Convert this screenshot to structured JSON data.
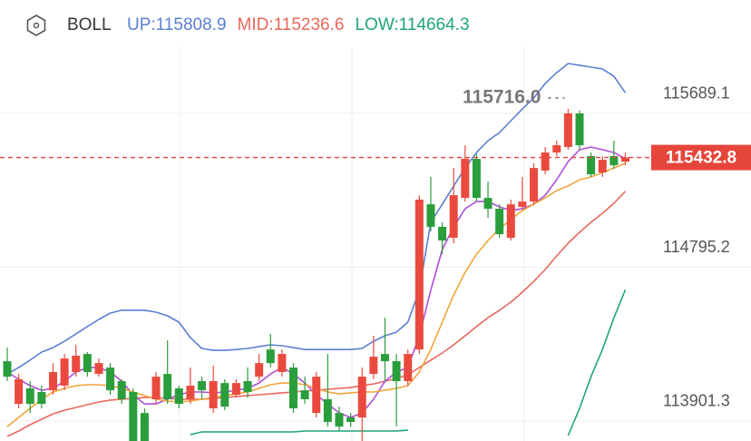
{
  "chart_data": {
    "type": "candlestick",
    "title": "BOLL",
    "legend": [
      {
        "text": "UP:115808.9",
        "color": "#5b7fd1"
      },
      {
        "text": "MID:115236.6",
        "color": "#e8675a"
      },
      {
        "text": "LOW:114664.3",
        "color": "#1fa37a"
      }
    ],
    "annotation": "115716.0",
    "ylim": [
      113785.2,
      116348.3
    ],
    "yticks": [
      115689.1,
      114795.2,
      113901.3
    ],
    "grid": true,
    "up_color": "#ea4a3e",
    "down_color": "#2b9e3c",
    "price_line_color": "#e5453b",
    "open": [
      114249,
      114001,
      114091,
      114070,
      114080,
      114107,
      114186,
      114291,
      114175,
      114212,
      114133,
      114070,
      113948,
      114028,
      114175,
      114091,
      114028,
      114133,
      113975,
      114122,
      114054,
      114133,
      114159,
      114317,
      114186,
      114212,
      114080,
      113948,
      114028,
      113948,
      113922,
      113922,
      114175,
      114291,
      114249,
      114133,
      114317,
      115161,
      115030,
      114966,
      115198,
      115425,
      115198,
      115135,
      114966,
      115146,
      115177,
      115357,
      115462,
      115494,
      115689,
      115441,
      115346,
      115441,
      115409
    ],
    "high": [
      114328,
      114175,
      114133,
      114107,
      114238,
      114291,
      114344,
      114302,
      114265,
      114238,
      114144,
      114091,
      113975,
      114186,
      114370,
      114107,
      114212,
      114159,
      114223,
      114144,
      114144,
      114212,
      114291,
      114407,
      114317,
      114238,
      114159,
      114186,
      114291,
      113985,
      113948,
      114212,
      114397,
      114502,
      114291,
      114317,
      115214,
      115320,
      115056,
      115372,
      115504,
      115452,
      115293,
      115161,
      115188,
      115320,
      115399,
      115494,
      115531,
      115716,
      115705,
      115462,
      115441,
      115531,
      115462
    ],
    "low": [
      114133,
      113975,
      113948,
      113975,
      114054,
      114080,
      114159,
      114159,
      114159,
      114054,
      114001,
      113785,
      113785,
      114001,
      114001,
      113975,
      114001,
      114028,
      113948,
      113964,
      114038,
      114038,
      114133,
      114212,
      114159,
      113948,
      114001,
      113922,
      113869,
      113843,
      113869,
      113785,
      114144,
      114133,
      113869,
      114107,
      114291,
      115003,
      114871,
      114935,
      115177,
      115177,
      115082,
      114966,
      114950,
      115135,
      115156,
      115335,
      115441,
      115478,
      115478,
      115320,
      115320,
      115367,
      115388
    ],
    "close": [
      114159,
      114144,
      114001,
      114001,
      114186,
      114265,
      114281,
      114186,
      114238,
      114080,
      114028,
      113785,
      113785,
      114159,
      114028,
      114001,
      114107,
      114080,
      114133,
      113985,
      114122,
      114070,
      114238,
      114238,
      114291,
      113975,
      114028,
      114159,
      113896,
      113869,
      113896,
      114159,
      114275,
      114249,
      114133,
      114291,
      115188,
      115030,
      114950,
      115214,
      115425,
      115198,
      115135,
      114987,
      115161,
      115177,
      115372,
      115462,
      115504,
      115689,
      115504,
      115335,
      115420,
      115388,
      115432.8
    ],
    "series": [
      {
        "color": "#5b7fd1",
        "values": [
          114175,
          114212,
          114255,
          114302,
          114328,
          114365,
          114408,
          114450,
          114492,
          114529,
          114545,
          114545,
          114545,
          114534,
          114513,
          114476,
          114386,
          114323,
          114312,
          114312,
          114317,
          114323,
          114334,
          114344,
          114339,
          114328,
          114317,
          114317,
          114317,
          114317,
          114317,
          114323,
          114365,
          114397,
          114418,
          114476,
          114661,
          115056,
          115161,
          115267,
          115372,
          115462,
          115531,
          115578,
          115647,
          115715,
          115779,
          115863,
          115926,
          115979,
          115969,
          115958,
          115948,
          115905,
          115808.9
        ]
      },
      {
        "color": "#e8675a",
        "values": [
          113812,
          113843,
          113880,
          113912,
          113943,
          113964,
          113980,
          113996,
          114012,
          114023,
          114028,
          114033,
          114038,
          114038,
          114033,
          114028,
          114028,
          114028,
          114033,
          114038,
          114044,
          114049,
          114054,
          114059,
          114065,
          114070,
          114075,
          114080,
          114086,
          114091,
          114096,
          114107,
          114117,
          114133,
          114149,
          114170,
          114212,
          114255,
          114297,
          114344,
          114397,
          114450,
          114502,
          114545,
          114592,
          114650,
          114713,
          114782,
          114861,
          114935,
          114998,
          115056,
          115109,
          115167,
          115236.6
        ]
      },
      {
        "color": "#1fa37a",
        "values": [
          null,
          null,
          null,
          null,
          null,
          null,
          null,
          null,
          null,
          null,
          null,
          null,
          null,
          null,
          null,
          null,
          113822,
          113838,
          113838,
          113838,
          113838,
          113838,
          113838,
          113838,
          113838,
          113838,
          113843,
          113843,
          113843,
          113843,
          113843,
          113843,
          113843,
          113843,
          113843,
          113848,
          null,
          null,
          null,
          null,
          null,
          null,
          null,
          null,
          null,
          null,
          null,
          null,
          null,
          113817,
          113975,
          114159,
          114317,
          114502,
          114664.3
        ]
      },
      {
        "color": "#b04fd6",
        "values": [
          114186,
          114144,
          114107,
          114080,
          114091,
          114133,
          114186,
          114212,
          114212,
          114186,
          114133,
          114054,
          114001,
          114001,
          114028,
          114054,
          114070,
          114070,
          114065,
          114070,
          114080,
          114091,
          114122,
          114175,
          114212,
          114175,
          114122,
          114054,
          114001,
          113948,
          113922,
          113948,
          114028,
          114133,
          114186,
          114212,
          114397,
          114661,
          114898,
          115030,
          115135,
          115177,
          115177,
          115146,
          115125,
          115135,
          115161,
          115214,
          115304,
          115409,
          115478,
          115494,
          115478,
          115462,
          115425
        ]
      },
      {
        "color": "#f0a53a",
        "values": [
          113869,
          113922,
          113975,
          114028,
          114070,
          114091,
          114107,
          114112,
          114112,
          114107,
          114091,
          114070,
          114049,
          114028,
          114017,
          114012,
          114017,
          114028,
          114038,
          114049,
          114059,
          114070,
          114091,
          114112,
          114122,
          114122,
          114112,
          114091,
          114070,
          114059,
          114065,
          114070,
          114070,
          114080,
          114091,
          114107,
          114186,
          114317,
          114476,
          114634,
          114766,
          114871,
          114950,
          115019,
          115072,
          115125,
          115161,
          115198,
          115241,
          115267,
          115304,
          115320,
          115346,
          115372,
          115399
        ]
      }
    ]
  }
}
